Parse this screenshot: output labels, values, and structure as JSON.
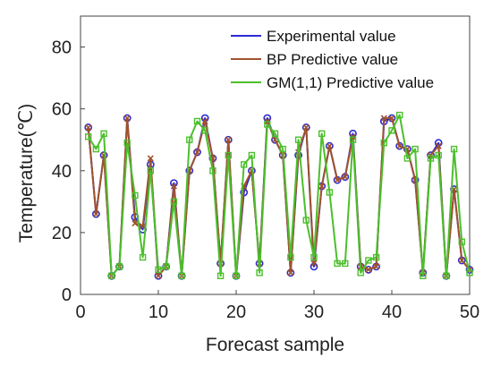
{
  "chart_data": {
    "type": "line",
    "title": "",
    "xlabel": "Forecast sample",
    "ylabel": "Temperature(℃)",
    "xlim": [
      0,
      50
    ],
    "ylim": [
      0,
      90
    ],
    "xticks": [
      0,
      10,
      20,
      30,
      40,
      50
    ],
    "yticks": [
      0,
      20,
      40,
      60,
      80
    ],
    "grid": false,
    "legend_position": "top-right",
    "x": [
      1,
      2,
      3,
      4,
      5,
      6,
      7,
      8,
      9,
      10,
      11,
      12,
      13,
      14,
      15,
      16,
      17,
      18,
      19,
      20,
      21,
      22,
      23,
      24,
      25,
      26,
      27,
      28,
      29,
      30,
      31,
      32,
      33,
      34,
      35,
      36,
      37,
      38,
      39,
      40,
      41,
      42,
      43,
      44,
      45,
      46,
      47,
      48,
      49,
      50
    ],
    "series": [
      {
        "name": "Experimental value",
        "color": "#2b2bd6",
        "marker": "circle",
        "values": [
          54,
          26,
          45,
          6,
          9,
          57,
          25,
          21,
          42,
          6,
          9,
          36,
          6,
          40,
          46,
          57,
          44,
          10,
          50,
          6,
          33,
          40,
          10,
          57,
          50,
          45,
          7,
          45,
          54,
          9,
          35,
          48,
          37,
          38,
          52,
          9,
          8,
          9,
          56,
          57,
          48,
          47,
          37,
          7,
          45,
          49,
          6,
          34,
          11,
          8
        ]
      },
      {
        "name": "BP Predictive value",
        "color": "#a0522d",
        "marker": "x",
        "values": [
          54,
          26,
          45,
          6,
          9,
          57,
          23,
          22,
          44,
          6,
          9,
          35,
          6,
          40,
          46,
          56,
          44,
          10,
          50,
          6,
          35,
          40,
          10,
          56,
          50,
          45,
          7,
          46,
          54,
          10,
          35,
          48,
          37,
          38,
          51,
          9,
          8,
          9,
          57,
          57,
          48,
          47,
          37,
          7,
          45,
          48,
          6,
          34,
          11,
          8
        ]
      },
      {
        "name": "GM(1,1) Predictive value",
        "color": "#4cbf2c",
        "marker": "square",
        "values": [
          51,
          47,
          52,
          6,
          9,
          49,
          32,
          12,
          40,
          8,
          9,
          30,
          6,
          50,
          56,
          53,
          40,
          6,
          45,
          6,
          42,
          45,
          7,
          55,
          52,
          47,
          12,
          50,
          24,
          12,
          52,
          33,
          10,
          10,
          50,
          7,
          11,
          12,
          49,
          53,
          58,
          44,
          47,
          6,
          44,
          45,
          6,
          47,
          17,
          7
        ]
      }
    ]
  }
}
